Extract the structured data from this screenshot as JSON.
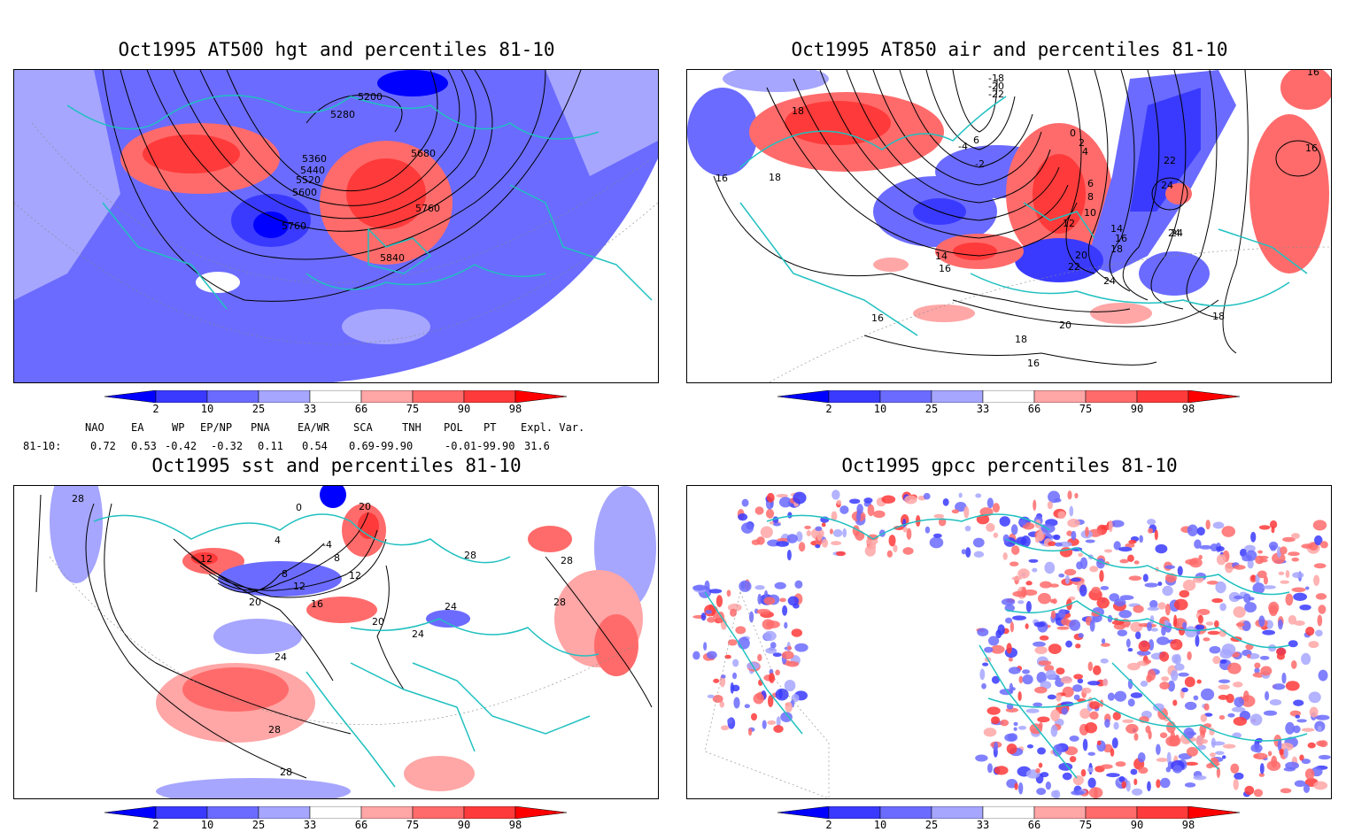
{
  "panels": [
    {
      "title": "Oct1995 AT500 hgt and percentiles 81-10",
      "contour_labels": [
        "5200",
        "5280",
        "5360",
        "5440",
        "5520",
        "5600",
        "5680",
        "5760",
        "5760",
        "5840"
      ]
    },
    {
      "title": "Oct1995 AT850 air and percentiles 81-10",
      "contour_labels": [
        "18",
        "16",
        "18",
        "-18",
        "-20",
        "-22",
        "0",
        "2",
        "4",
        "6",
        "8",
        "10",
        "12",
        "14",
        "16",
        "18",
        "20",
        "22",
        "24",
        "24",
        "24",
        "16",
        "14",
        "16",
        "18",
        "20",
        "22",
        "24",
        "16",
        "-4",
        "6",
        "-2",
        "16",
        "18",
        "16"
      ]
    },
    {
      "title": "Oct1995 sst and percentiles 81-10",
      "contour_labels": [
        "28",
        "0",
        "4",
        "-4",
        "8",
        "12",
        "16",
        "20",
        "24",
        "28",
        "28",
        "28",
        "24",
        "20",
        "24",
        "28",
        "12",
        "8",
        "12",
        "20",
        "28"
      ]
    },
    {
      "title": "Oct1995 gpcc percentiles 81-10",
      "contour_labels": []
    }
  ],
  "colorbar": {
    "labels": [
      "2",
      "10",
      "25",
      "33",
      "66",
      "75",
      "90",
      "98"
    ],
    "colors": [
      "#0000ff",
      "#3a3aff",
      "#6b6bff",
      "#a6a6ff",
      "#ffffff",
      "#ffa6a6",
      "#ff6b6b",
      "#ff3a3a",
      "#ff0000"
    ]
  },
  "indices": {
    "headers": [
      "NAO",
      "EA",
      "WP",
      "EP/NP",
      "PNA",
      "EA/WR",
      "SCA",
      "TNH",
      "POL",
      "PT",
      "Expl. Var."
    ],
    "row_label": "81-10:",
    "values": [
      "0.72",
      "0.53",
      "-0.42",
      "-0.32",
      "0.11",
      "0.54",
      "0.69-99.90",
      "-0.01-99.90",
      "31.6"
    ]
  }
}
